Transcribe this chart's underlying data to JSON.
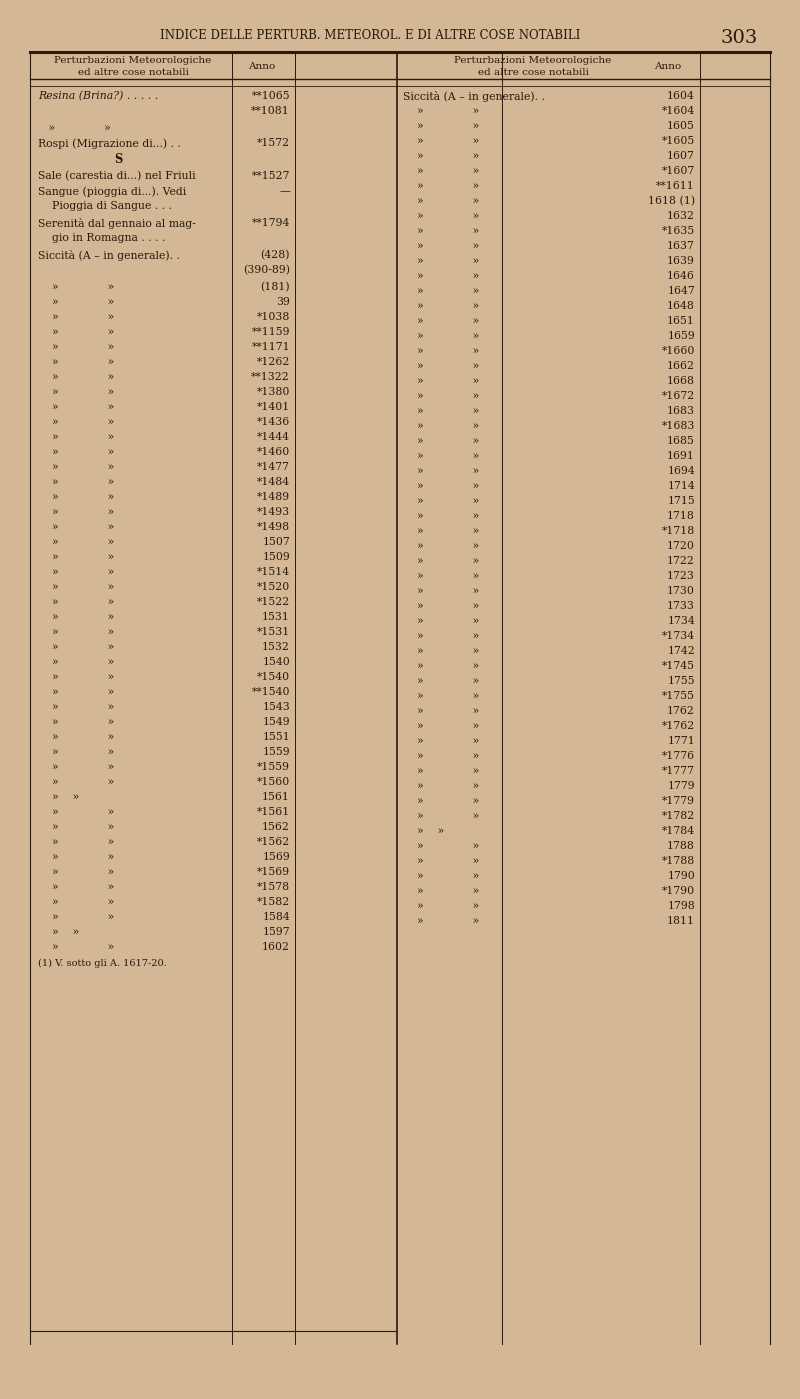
{
  "bg_color": "#d4b896",
  "text_color": "#2a1a0a",
  "page_header": "INDICE DELLE PERTURB. METEOROL. E DI ALTRE COSE NOTABILI",
  "page_number": "303",
  "left_entries": [
    [
      "italic",
      "Resina (Brina?) . . . . .",
      "**1065\n**1081"
    ],
    [
      "normal",
      "   »              »",
      ""
    ],
    [
      "normal",
      "Rospi (Migrazione di...) . .",
      "*1572"
    ],
    [
      "bold_center",
      "S",
      ""
    ],
    [
      "normal",
      "Sale (carestia di...) nel Friuli",
      "**1527"
    ],
    [
      "normal",
      "Sangue (pioggia di...). Vedi\n    Pioggia di Sangue . . .",
      "—"
    ],
    [
      "normal",
      "Serenità dal gennaio al mag-\n    gio in Romagna . . . .",
      "**1794"
    ],
    [
      "normal",
      "Siccità (A – in generale). .",
      "(428)\n(390-89)"
    ],
    [
      "normal",
      "    »              »",
      "(181)"
    ],
    [
      "normal",
      "    »              »",
      "39"
    ],
    [
      "normal",
      "    »              »",
      "*1038"
    ],
    [
      "normal",
      "    »              »",
      "**1159"
    ],
    [
      "normal",
      "    »              »",
      "**1171"
    ],
    [
      "normal",
      "    »              »",
      "*1262"
    ],
    [
      "normal",
      "    »              »",
      "**1322"
    ],
    [
      "normal",
      "    »              »",
      "*1380"
    ],
    [
      "normal",
      "    »              »",
      "*1401"
    ],
    [
      "normal",
      "    »              »",
      "*1436"
    ],
    [
      "normal",
      "    »              »",
      "*1444"
    ],
    [
      "normal",
      "    »              »",
      "*1460"
    ],
    [
      "normal",
      "    »              »",
      "*1477"
    ],
    [
      "normal",
      "    »              »",
      "*1484"
    ],
    [
      "normal",
      "    »              »",
      "*1489"
    ],
    [
      "normal",
      "    »              »",
      "*1493"
    ],
    [
      "normal",
      "    »              »",
      "*1498"
    ],
    [
      "normal",
      "    »              »",
      "1507"
    ],
    [
      "normal",
      "    »              »",
      "1509"
    ],
    [
      "normal",
      "    »              »",
      "*1514"
    ],
    [
      "normal",
      "    »              »",
      "*1520"
    ],
    [
      "normal",
      "    »              »",
      "*1522"
    ],
    [
      "normal",
      "    »              »",
      "1531"
    ],
    [
      "normal",
      "    »              »",
      "*1531"
    ],
    [
      "normal",
      "    »              »",
      "1532"
    ],
    [
      "normal",
      "    »              »",
      "1540"
    ],
    [
      "normal",
      "    »              »",
      "*1540"
    ],
    [
      "normal",
      "    »              »",
      "**1540"
    ],
    [
      "normal",
      "    »              »",
      "1543"
    ],
    [
      "normal",
      "    »              »",
      "1549"
    ],
    [
      "normal",
      "    »              »",
      "1551"
    ],
    [
      "normal",
      "    »              »",
      "1559"
    ],
    [
      "normal",
      "    »              »",
      "*1559"
    ],
    [
      "normal",
      "    »              »",
      "*1560"
    ],
    [
      "normal",
      "    »    »",
      "1561"
    ],
    [
      "normal",
      "    »              »",
      "*1561"
    ],
    [
      "normal",
      "    »              »",
      "1562"
    ],
    [
      "normal",
      "    »              »",
      "*1562"
    ],
    [
      "normal",
      "    »              »",
      "1569"
    ],
    [
      "normal",
      "    »              »",
      "*1569"
    ],
    [
      "normal",
      "    »              »",
      "*1578"
    ],
    [
      "normal",
      "    »              »",
      "*1582"
    ],
    [
      "normal",
      "    »              »",
      "1584"
    ],
    [
      "normal",
      "    »    »",
      "1597"
    ],
    [
      "normal",
      "    »              »",
      "1602"
    ],
    [
      "footnote",
      "(1) V. sotto gli A. 1617-20.",
      ""
    ]
  ],
  "right_entries": [
    [
      "normal",
      "Siccità (A – in generale). .",
      "1604"
    ],
    [
      "normal",
      "    »              »",
      "*1604"
    ],
    [
      "normal",
      "    »              »",
      "1605"
    ],
    [
      "normal",
      "    »              »",
      "*1605"
    ],
    [
      "normal",
      "    »              »",
      "1607"
    ],
    [
      "normal",
      "    »              »",
      "*1607"
    ],
    [
      "normal",
      "    »              »",
      "**1611"
    ],
    [
      "normal",
      "    »              »",
      "1618 (1)"
    ],
    [
      "normal",
      "    »              »",
      "1632"
    ],
    [
      "normal",
      "    »              »",
      "*1635"
    ],
    [
      "normal",
      "    »              »",
      "1637"
    ],
    [
      "normal",
      "    »              »",
      "1639"
    ],
    [
      "normal",
      "    »              »",
      "1646"
    ],
    [
      "normal",
      "    »              »",
      "1647"
    ],
    [
      "normal",
      "    »              »",
      "1648"
    ],
    [
      "normal",
      "    »              »",
      "1651"
    ],
    [
      "normal",
      "    »              »",
      "1659"
    ],
    [
      "normal",
      "    »              »",
      "*1660"
    ],
    [
      "normal",
      "    »              »",
      "1662"
    ],
    [
      "normal",
      "    »              »",
      "1668"
    ],
    [
      "normal",
      "    »              »",
      "*1672"
    ],
    [
      "normal",
      "    »              »",
      "1683"
    ],
    [
      "normal",
      "    »              »",
      "*1683"
    ],
    [
      "normal",
      "    »              »",
      "1685"
    ],
    [
      "normal",
      "    »              »",
      "1691"
    ],
    [
      "normal",
      "    »              »",
      "1694"
    ],
    [
      "normal",
      "    »              »",
      "1714"
    ],
    [
      "normal",
      "    »              »",
      "1715"
    ],
    [
      "normal",
      "    »              »",
      "1718"
    ],
    [
      "normal",
      "    »              »",
      "*1718"
    ],
    [
      "normal",
      "    »              »",
      "1720"
    ],
    [
      "normal",
      "    »              »",
      "1722"
    ],
    [
      "normal",
      "    »              »",
      "1723"
    ],
    [
      "normal",
      "    »              »",
      "1730"
    ],
    [
      "normal",
      "    »              »",
      "1733"
    ],
    [
      "normal",
      "    »              »",
      "1734"
    ],
    [
      "normal",
      "    »              »",
      "*1734"
    ],
    [
      "normal",
      "    »              »",
      "1742"
    ],
    [
      "normal",
      "    »              »",
      "*1745"
    ],
    [
      "normal",
      "    »              »",
      "1755"
    ],
    [
      "normal",
      "    »              »",
      "*1755"
    ],
    [
      "normal",
      "    »              »",
      "1762"
    ],
    [
      "normal",
      "    »              »",
      "*1762"
    ],
    [
      "normal",
      "    »              »",
      "1771"
    ],
    [
      "normal",
      "    »              »",
      "*1776"
    ],
    [
      "normal",
      "    »              »",
      "*1777"
    ],
    [
      "normal",
      "    »              »",
      "1779"
    ],
    [
      "normal",
      "    »              »",
      "*1779"
    ],
    [
      "normal",
      "    »              »",
      "*1782"
    ],
    [
      "normal",
      "    »    »",
      "*1784"
    ],
    [
      "normal",
      "    »              »",
      "1788"
    ],
    [
      "normal",
      "    »              »",
      "*1788"
    ],
    [
      "normal",
      "    »              »",
      "1790"
    ],
    [
      "normal",
      "    »              »",
      "*1790"
    ],
    [
      "normal",
      "    »              »",
      "1798"
    ],
    [
      "normal",
      "    »              »",
      "1811"
    ]
  ]
}
